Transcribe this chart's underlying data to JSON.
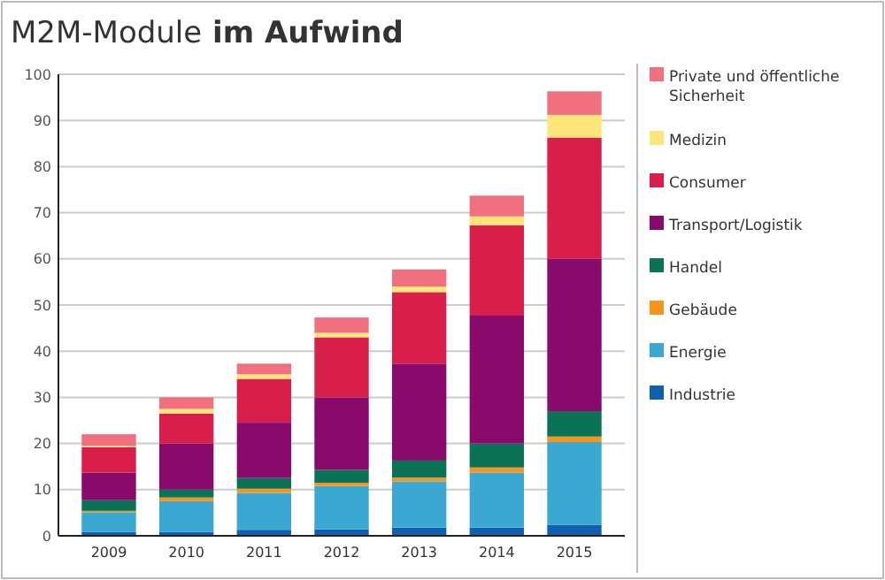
{
  "chart_data": {
    "type": "bar",
    "title": "M2M-Module im Aufwind",
    "stacked": true,
    "categories": [
      "2009",
      "2010",
      "2011",
      "2012",
      "2013",
      "2014",
      "2015"
    ],
    "series": [
      {
        "name": "Industrie",
        "color": "#1060b0",
        "values": [
          0.8,
          0.8,
          1.3,
          1.4,
          1.8,
          1.8,
          2.4
        ]
      },
      {
        "name": "Energie",
        "color": "#3aa8d0",
        "values": [
          4.3,
          6.7,
          8,
          9.4,
          10,
          11.9,
          17.9
        ]
      },
      {
        "name": "Gebäude",
        "color": "#f7941d",
        "values": [
          0.3,
          0.8,
          0.9,
          0.7,
          0.8,
          1.1,
          1.2
        ]
      },
      {
        "name": "Handel",
        "color": "#0a7255",
        "values": [
          2.3,
          1.7,
          2.3,
          2.8,
          3.7,
          5.2,
          5.5
        ]
      },
      {
        "name": "Transport/Logistik",
        "color": "#880a6a",
        "values": [
          6,
          10,
          12,
          15.7,
          21,
          27.7,
          33
        ]
      },
      {
        "name": "Consumer",
        "color": "#d81e4a",
        "values": [
          5.5,
          6.5,
          9.5,
          13,
          15.5,
          19.6,
          26.3
        ]
      },
      {
        "name": "Medizin",
        "color": "#fce67a",
        "values": [
          0.3,
          1,
          1,
          1,
          1.2,
          1.9,
          4.9
        ]
      },
      {
        "name": "Private und öffentliche Sicherheit",
        "color": "#f07080",
        "values": [
          2.5,
          2.5,
          2.3,
          3.3,
          3.7,
          4.5,
          5.1
        ]
      }
    ],
    "ylim": [
      0,
      100
    ],
    "yticks": [
      0,
      10,
      20,
      30,
      40,
      50,
      60,
      70,
      80,
      90,
      100
    ],
    "grid": "y",
    "legend": "right"
  }
}
